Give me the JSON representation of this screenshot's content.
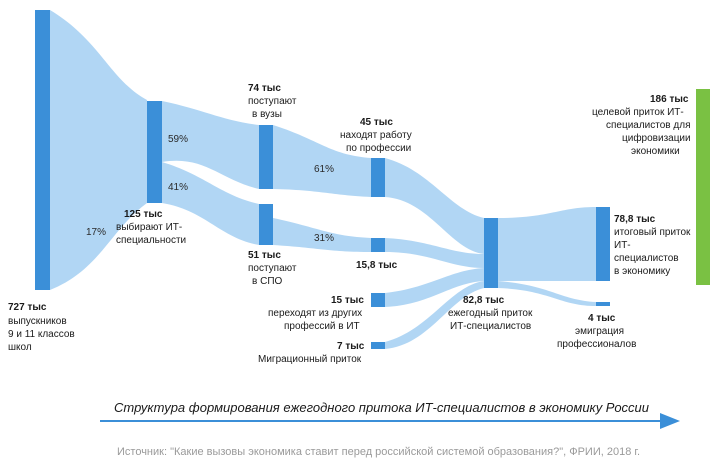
{
  "colors": {
    "node": "#3b8fd8",
    "flow": "#a8d2f3",
    "target": "#7ac143",
    "arrow": "#3b8fd8"
  },
  "nodes": {
    "graduates": {
      "value": "727 тыс",
      "lines": [
        "выпускников",
        "9 и 11 классов",
        "школ"
      ]
    },
    "it_choice": {
      "value": "125 тыс",
      "lines": [
        "выбирают ИТ-",
        "специальности"
      ]
    },
    "universities": {
      "value": "74 тыс",
      "lines": [
        "поступают",
        "в вузы"
      ]
    },
    "spo": {
      "value": "51 тыс",
      "lines": [
        "поступают",
        "в СПО"
      ]
    },
    "find_work": {
      "value": "45 тыс",
      "lines": [
        "находят работу",
        "по профессии"
      ]
    },
    "spo_work": {
      "value": "15,8 тыс",
      "lines": []
    },
    "other_prof": {
      "value": "15 тыс",
      "lines": [
        "переходят из других",
        "профессий в ИТ"
      ]
    },
    "migration": {
      "value": "7 тыс",
      "lines": [
        "Миграционный приток"
      ]
    },
    "annual": {
      "value": "82,8 тыс",
      "lines": [
        "ежегодный приток",
        "ИТ-специалистов"
      ]
    },
    "total": {
      "value": "78,8 тыс",
      "lines": [
        "итоговый приток",
        "ИТ-",
        "специалистов",
        "в экономику"
      ]
    },
    "emigration": {
      "value": "4 тыс",
      "lines": [
        "эмиграция",
        "профессионалов"
      ]
    },
    "target": {
      "value": "186 тыс",
      "lines": [
        "целевой приток ИТ-",
        "специалистов для",
        "цифровизации",
        "экономики"
      ]
    }
  },
  "percents": {
    "graduates_to_it": "17%",
    "it_to_universities": "59%",
    "it_to_spo": "41%",
    "universities_to_work": "61%",
    "spo_to_work": "31%"
  },
  "caption": "Структура формирования ежегодного притока ИТ-специалистов в экономику России",
  "source": "Источник: \"Какие вызовы экономика ставит перед российской системой образования?\", ФРИИ, 2018 г."
}
